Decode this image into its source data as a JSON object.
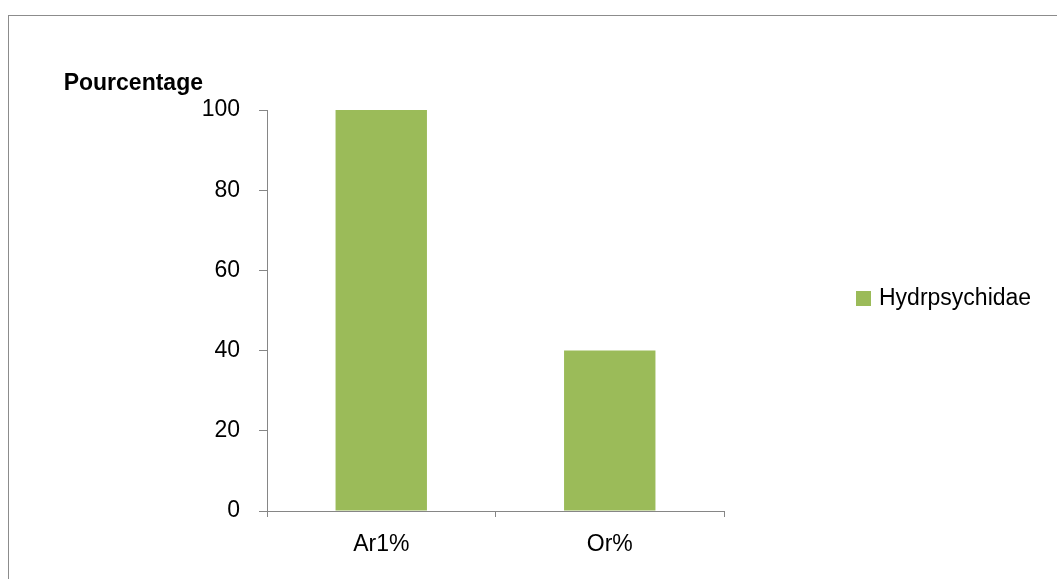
{
  "chart_data": {
    "type": "bar",
    "ylabel": "Pourcentage",
    "categories": [
      "Ar1%",
      "Or%"
    ],
    "series": [
      {
        "name": "Hydrpsychidae",
        "color": "#9bbb59",
        "values": [
          100,
          40
        ]
      }
    ],
    "ylim": [
      0,
      100
    ],
    "yticks": [
      0,
      20,
      40,
      60,
      80,
      100
    ],
    "legend": "right"
  }
}
